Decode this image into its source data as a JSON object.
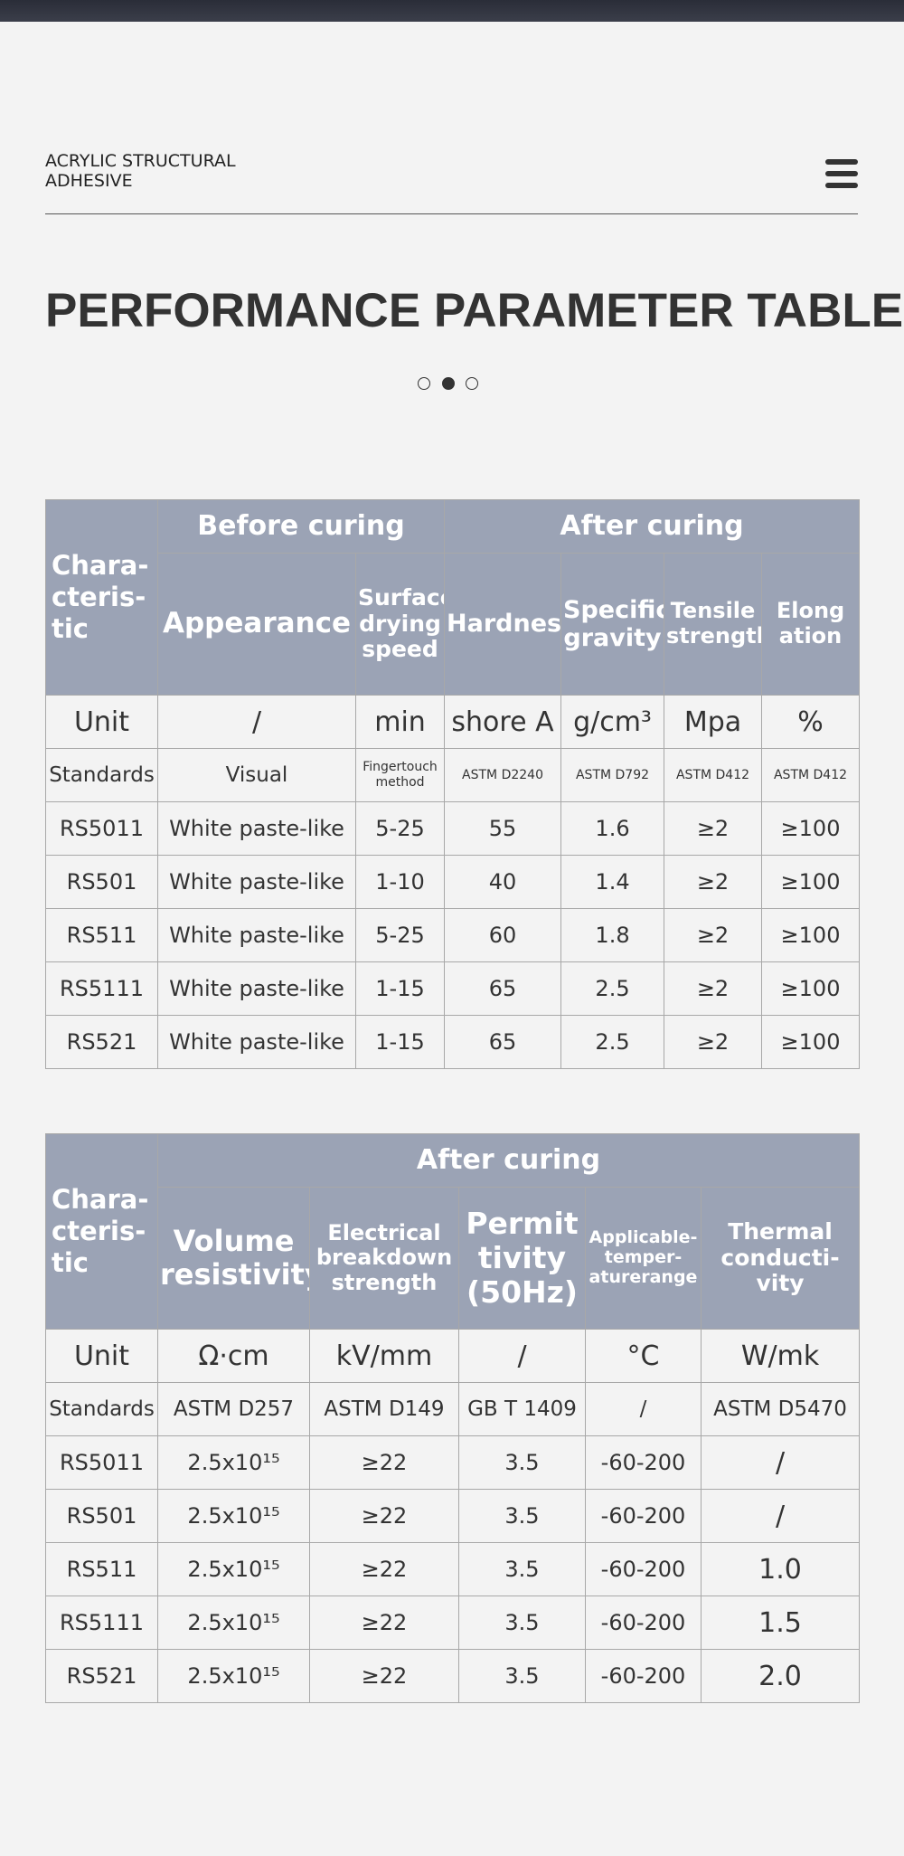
{
  "header": {
    "brand": "ACRYLIC STRUCTURAL ADHESIVE"
  },
  "title": "PERFORMANCE PARAMETER TABLE",
  "tables": [
    {
      "characteristic": "Chara-cteris-tic",
      "groups": [
        "Before curing",
        "After curing"
      ],
      "columns": [
        "Appearance",
        "Surface drying speed",
        "Hardness",
        "Specific gravity",
        "Tensile strength",
        "Elong ation"
      ],
      "unit": [
        "Unit",
        "/",
        "min",
        "shore A",
        "g/cm³",
        "Mpa",
        "%"
      ],
      "standards": [
        "Standards",
        "Visual",
        "Fingertouch method",
        "ASTM D2240",
        "ASTM D792",
        "ASTM D412",
        "ASTM D412"
      ],
      "rows": [
        [
          "RS5011",
          "White paste-like",
          "5-25",
          "55",
          "1.6",
          "≥2",
          "≥100"
        ],
        [
          "RS501",
          "White paste-like",
          "1-10",
          "40",
          "1.4",
          "≥2",
          "≥100"
        ],
        [
          "RS511",
          "White paste-like",
          "5-25",
          "60",
          "1.8",
          "≥2",
          "≥100"
        ],
        [
          "RS5111",
          "White paste-like",
          "1-15",
          "65",
          "2.5",
          "≥2",
          "≥100"
        ],
        [
          "RS521",
          "White paste-like",
          "1-15",
          "65",
          "2.5",
          "≥2",
          "≥100"
        ]
      ]
    },
    {
      "characteristic": "Chara-cteris-tic",
      "groups": [
        "After curing"
      ],
      "columns": [
        "Volume resistivity",
        "Electrical breakdown strength",
        "Permit tivity (50Hz)",
        "Applicable-temper-aturerange",
        "Thermal conducti-vity"
      ],
      "unit": [
        "Unit",
        "Ω·cm",
        "kV/mm",
        "/",
        "°C",
        "W/mk"
      ],
      "standards": [
        "Standards",
        "ASTM D257",
        "ASTM D149",
        "GB T 1409",
        "/",
        "ASTM D5470"
      ],
      "rows": [
        [
          "RS5011",
          "2.5x10¹⁵",
          "≥22",
          "3.5",
          "-60-200",
          "/"
        ],
        [
          "RS501",
          "2.5x10¹⁵",
          "≥22",
          "3.5",
          "-60-200",
          "/"
        ],
        [
          "RS511",
          "2.5x10¹⁵",
          "≥22",
          "3.5",
          "-60-200",
          "1.0"
        ],
        [
          "RS5111",
          "2.5x10¹⁵",
          "≥22",
          "3.5",
          "-60-200",
          "1.5"
        ],
        [
          "RS521",
          "2.5x10¹⁵",
          "≥22",
          "3.5",
          "-60-200",
          "2.0"
        ]
      ]
    }
  ]
}
